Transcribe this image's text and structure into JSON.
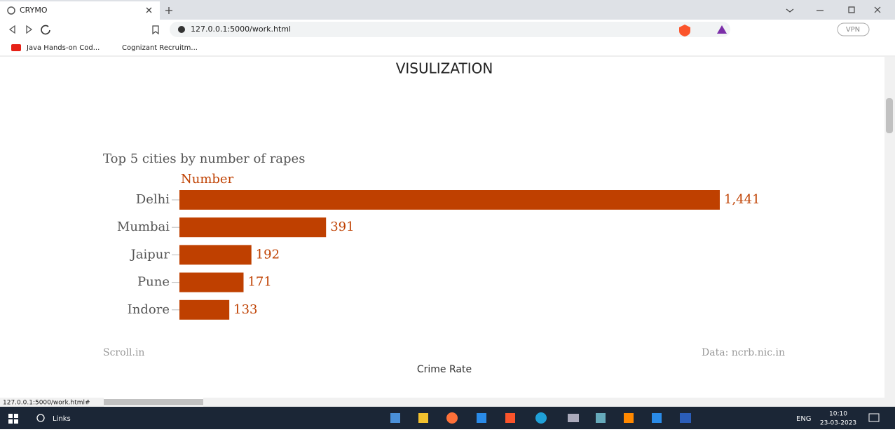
{
  "browser": {
    "tab_title": "CRYMO",
    "url": "127.0.0.1:5000/work.html",
    "vpn": "VPN",
    "bookmarks": [
      "Java Hands-on Cod...",
      "Cognizant Recruitm..."
    ],
    "status_url": "127.0.0.1:5000/work.html#"
  },
  "page": {
    "heading": "VISULIZATION",
    "source_left": "Scroll.in",
    "source_right": "Data: ncrb.nic.in",
    "caption": "Crime Rate"
  },
  "taskbar": {
    "search": "Links",
    "lang": "ENG",
    "time": "10:10",
    "date": "23-03-2023"
  },
  "chart_data": {
    "type": "hbar",
    "title": "Top 5 cities by number of rapes",
    "x_label": "Number",
    "categories": [
      "Delhi",
      "Mumbai",
      "Jaipur",
      "Pune",
      "Indore"
    ],
    "values": [
      1441,
      391,
      192,
      171,
      133
    ],
    "value_labels": [
      "1,441",
      "391",
      "192",
      "171",
      "133"
    ],
    "color": "#bf4000"
  }
}
